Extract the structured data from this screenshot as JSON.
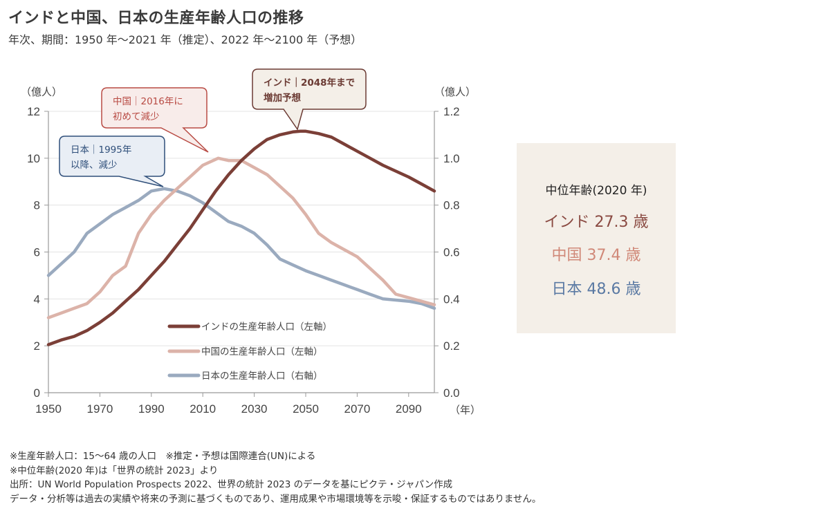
{
  "header": {
    "title": "インドと中国、日本の生産年齢人口の推移",
    "subtitle": "年次、期間：1950 年～2021 年（推定）、2022 年～2100 年（予想）"
  },
  "chart_data": {
    "type": "line",
    "title": "インドと中国、日本の生産年齢人口の推移",
    "subtitle": "年次、期間：1950 年～2021 年（推定）、2022 年～2100 年（予想）",
    "xlabel": "（年）",
    "ylabel_left": "（億人）",
    "ylabel_right": "（億人）",
    "xlim": [
      1950,
      2100
    ],
    "ylim_left": [
      0,
      12
    ],
    "ylim_right": [
      0,
      1.2
    ],
    "x_ticks": [
      "1950",
      "1970",
      "1990",
      "2010",
      "2030",
      "2050",
      "2070",
      "2090"
    ],
    "y_ticks_left": [
      "0",
      "2",
      "4",
      "6",
      "8",
      "10",
      "12"
    ],
    "y_ticks_right": [
      "0.0",
      "0.2",
      "0.4",
      "0.6",
      "0.8",
      "1.0",
      "1.2"
    ],
    "grid": true,
    "legend_position": "bottom-center",
    "series": [
      {
        "name": "インドの生産年齢人口（左軸）",
        "axis": "left",
        "color": "#7b3f37",
        "x": [
          1950,
          1955,
          1960,
          1965,
          1970,
          1975,
          1980,
          1985,
          1990,
          1995,
          2000,
          2005,
          2010,
          2015,
          2020,
          2025,
          2030,
          2035,
          2040,
          2045,
          2048,
          2050,
          2055,
          2060,
          2065,
          2070,
          2075,
          2080,
          2085,
          2090,
          2095,
          2100
        ],
        "values": [
          2.05,
          2.25,
          2.4,
          2.65,
          3.0,
          3.4,
          3.9,
          4.4,
          5.0,
          5.6,
          6.3,
          7.0,
          7.8,
          8.6,
          9.3,
          9.9,
          10.4,
          10.8,
          11.0,
          11.12,
          11.15,
          11.15,
          11.05,
          10.9,
          10.6,
          10.3,
          10.0,
          9.7,
          9.45,
          9.2,
          8.9,
          8.6
        ]
      },
      {
        "name": "中国の生産年齢人口（左軸）",
        "axis": "left",
        "color": "#dcb3a9",
        "x": [
          1950,
          1955,
          1960,
          1965,
          1970,
          1975,
          1980,
          1985,
          1990,
          1995,
          2000,
          2005,
          2010,
          2016,
          2020,
          2025,
          2030,
          2035,
          2040,
          2045,
          2050,
          2055,
          2060,
          2065,
          2070,
          2075,
          2080,
          2085,
          2090,
          2095,
          2100
        ],
        "values": [
          3.2,
          3.4,
          3.6,
          3.8,
          4.3,
          5.0,
          5.4,
          6.8,
          7.6,
          8.2,
          8.7,
          9.2,
          9.7,
          10.0,
          9.9,
          9.9,
          9.6,
          9.3,
          8.8,
          8.3,
          7.6,
          6.8,
          6.4,
          6.1,
          5.8,
          5.3,
          4.8,
          4.2,
          4.05,
          3.9,
          3.75
        ]
      },
      {
        "name": "日本の生産年齢人口（右軸）",
        "axis": "right",
        "color": "#9aaabf",
        "x": [
          1950,
          1955,
          1960,
          1965,
          1970,
          1975,
          1980,
          1985,
          1990,
          1995,
          2000,
          2005,
          2010,
          2015,
          2020,
          2025,
          2030,
          2035,
          2040,
          2045,
          2050,
          2055,
          2060,
          2065,
          2070,
          2075,
          2080,
          2085,
          2090,
          2095,
          2100
        ],
        "values": [
          0.5,
          0.55,
          0.6,
          0.68,
          0.72,
          0.76,
          0.79,
          0.82,
          0.86,
          0.87,
          0.86,
          0.84,
          0.81,
          0.77,
          0.73,
          0.71,
          0.68,
          0.63,
          0.57,
          0.545,
          0.52,
          0.5,
          0.48,
          0.46,
          0.44,
          0.42,
          0.4,
          0.395,
          0.39,
          0.38,
          0.36
        ]
      }
    ],
    "annotations": [
      {
        "text_line1": "中国｜2016年に",
        "text_line2": "初めて減少",
        "color": "#b84a43",
        "fill": "#f8ecea",
        "target_year": 2016
      },
      {
        "text_line1": "日本｜1995年",
        "text_line2": "以降、減少",
        "color": "#2f4f7a",
        "fill": "#e9eef5",
        "target_year": 1995
      },
      {
        "text_line1": "インド｜2048年まで",
        "text_line2": "増加予想",
        "color": "#6b3a33",
        "fill": "#f4efe8",
        "target_year": 2048
      }
    ]
  },
  "median_age": {
    "title": "中位年齢(2020 年)",
    "rows": [
      {
        "label": "インド 27.3 歳",
        "color": "#8a4a42"
      },
      {
        "label": "中国 37.4 歳",
        "color": "#d08878"
      },
      {
        "label": "日本 48.6 歳",
        "color": "#5a79a3"
      }
    ]
  },
  "notes": [
    "※生産年齢人口：15～64 歳の人口　※推定・予想は国際連合(UN)による",
    "※中位年齢(2020 年)は「世界の統計 2023」より",
    "出所：UN World Population Prospects 2022、世界の統計 2023 のデータを基にピクテ・ジャパン作成",
    "データ・分析等は過去の実績や将来の予測に基づくものであり、運用成果や市場環境等を示唆・保証するものではありません。"
  ]
}
